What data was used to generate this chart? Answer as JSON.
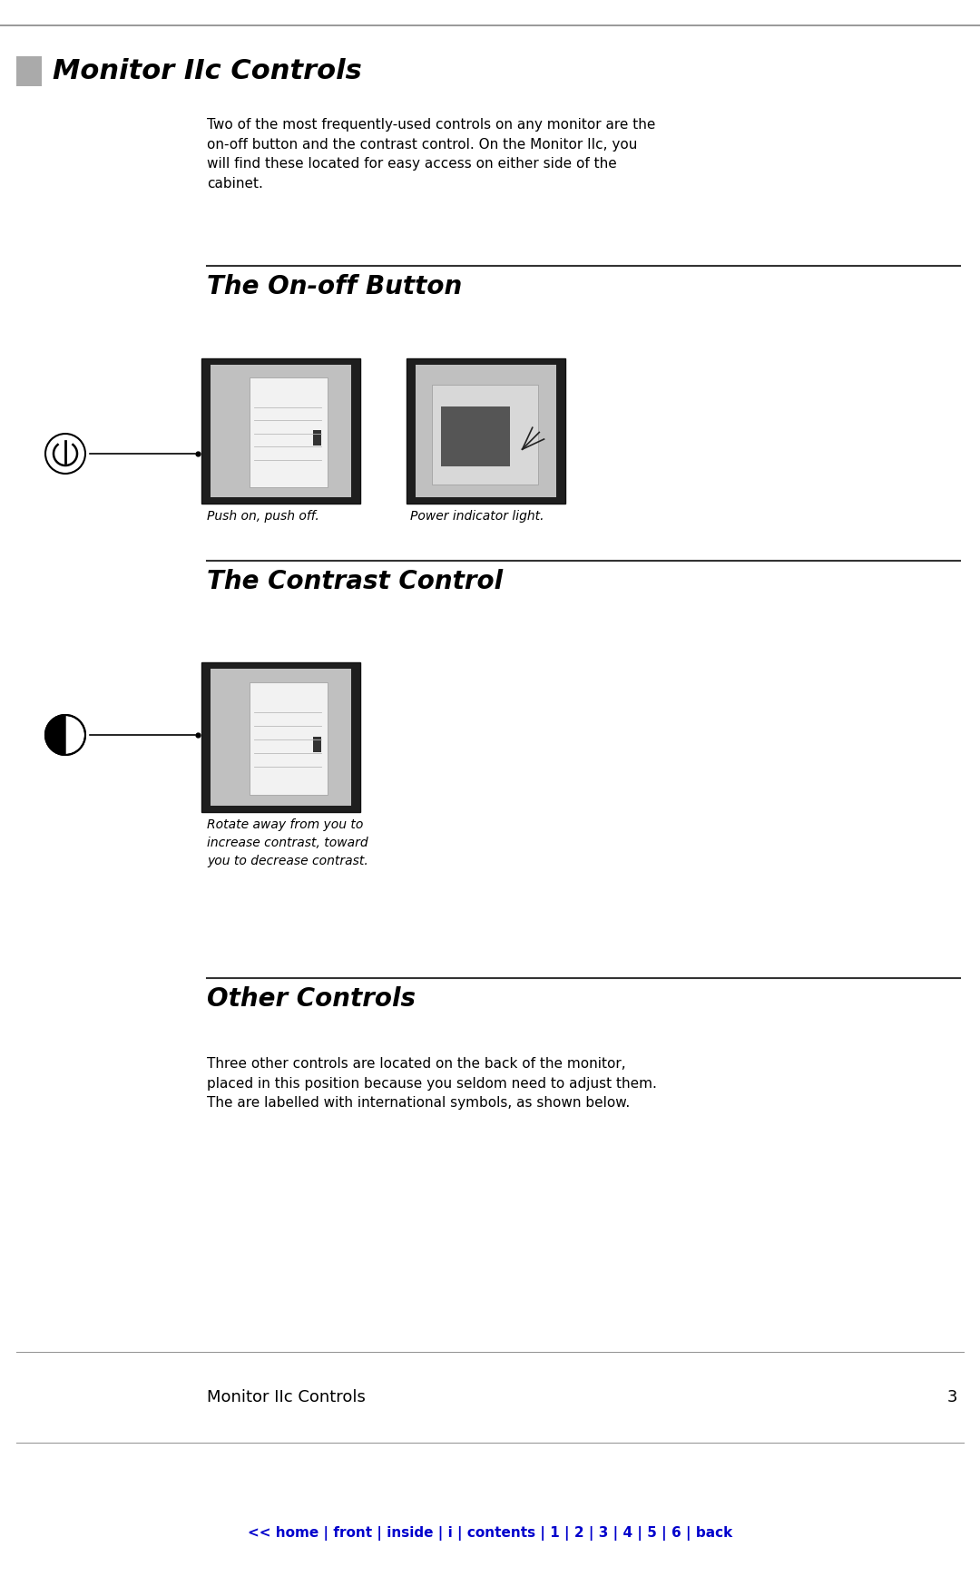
{
  "bg_color": "#ffffff",
  "header_title": "Monitor IIc Controls",
  "header_title_color": "#000000",
  "intro_text_lines": [
    "Two of the most frequently-used controls on any monitor are the",
    "on-off button and the contrast control. On the Monitor IIc, you",
    "will find these located for easy access on either side of the",
    "cabinet."
  ],
  "section1_title": "The On-off Button",
  "section1_cap1": "Push on, push off.",
  "section1_cap2": "Power indicator light.",
  "section2_title": "The Contrast Control",
  "section2_cap_lines": [
    "Rotate away from you to",
    "increase contrast, toward",
    "you to decrease contrast."
  ],
  "section3_title": "Other Controls",
  "section3_text_lines": [
    "Three other controls are located on the back of the monitor,",
    "placed in this position because you seldom need to adjust them.",
    "The are labelled with international symbols, as shown below."
  ],
  "footer_label": "Monitor IIc Controls",
  "footer_page": "3",
  "nav_text": "<< home | front | inside | i | contents | 1 | 2 | 3 | 4 | 5 | 6 | back",
  "nav_color": "#0000cc",
  "separator_color": "#333333",
  "header_gray": "#aaaaaa",
  "dark_border": "#222222",
  "photo_bg": "#b8b8b8",
  "photo_inner_bg": "#d0d0d0"
}
